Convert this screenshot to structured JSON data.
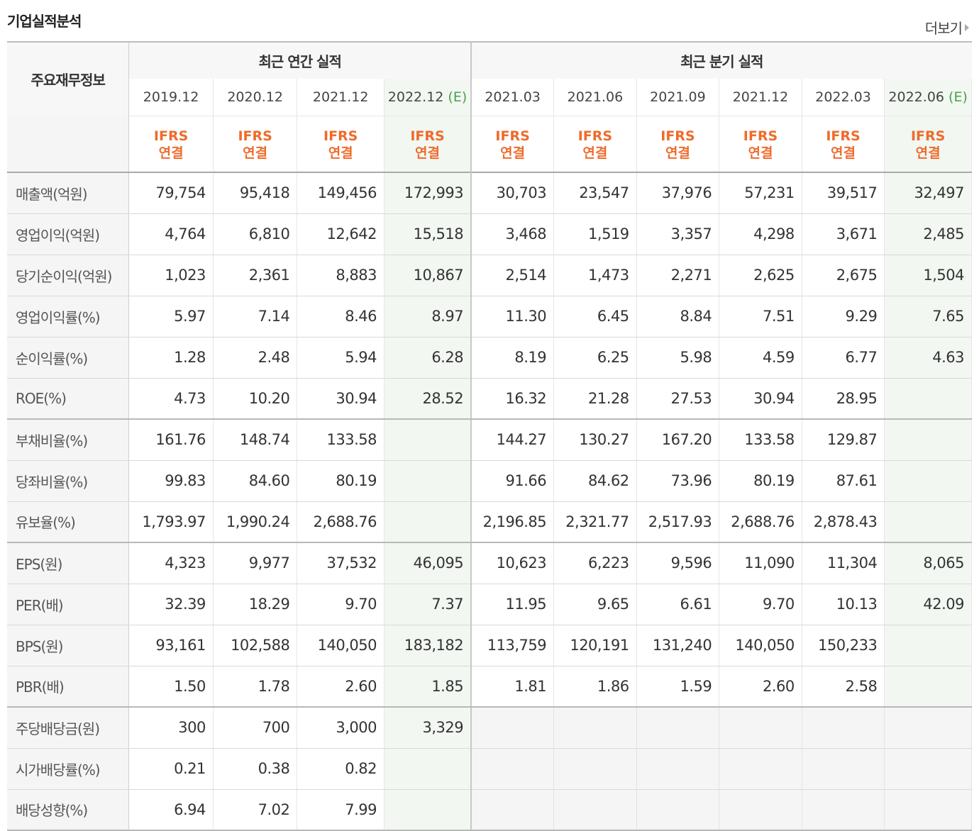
{
  "title": "기업실적분석",
  "more_label": "더보기",
  "header": {
    "corner": "주요재무정보",
    "annual_group": "최근 연간 실적",
    "quarter_group": "최근 분기 실적",
    "annual": [
      {
        "period": "2019.12",
        "estimate": "",
        "std": "IFRS",
        "type": "연결"
      },
      {
        "period": "2020.12",
        "estimate": "",
        "std": "IFRS",
        "type": "연결"
      },
      {
        "period": "2021.12",
        "estimate": "",
        "std": "IFRS",
        "type": "연결"
      },
      {
        "period": "2022.12",
        "estimate": "(E)",
        "std": "IFRS",
        "type": "연결"
      }
    ],
    "quarter": [
      {
        "period": "2021.03",
        "estimate": "",
        "std": "IFRS",
        "type": "연결"
      },
      {
        "period": "2021.06",
        "estimate": "",
        "std": "IFRS",
        "type": "연결"
      },
      {
        "period": "2021.09",
        "estimate": "",
        "std": "IFRS",
        "type": "연결"
      },
      {
        "period": "2021.12",
        "estimate": "",
        "std": "IFRS",
        "type": "연결"
      },
      {
        "period": "2022.03",
        "estimate": "",
        "std": "IFRS",
        "type": "연결"
      },
      {
        "period": "2022.06",
        "estimate": "(E)",
        "std": "IFRS",
        "type": "연결"
      }
    ]
  },
  "rows": [
    {
      "label": "매출액(억원)",
      "values": [
        "79,754",
        "95,418",
        "149,456",
        "172,993",
        "30,703",
        "23,547",
        "37,976",
        "57,231",
        "39,517",
        "32,497"
      ]
    },
    {
      "label": "영업이익(억원)",
      "values": [
        "4,764",
        "6,810",
        "12,642",
        "15,518",
        "3,468",
        "1,519",
        "3,357",
        "4,298",
        "3,671",
        "2,485"
      ]
    },
    {
      "label": "당기순이익(억원)",
      "values": [
        "1,023",
        "2,361",
        "8,883",
        "10,867",
        "2,514",
        "1,473",
        "2,271",
        "2,625",
        "2,675",
        "1,504"
      ]
    },
    {
      "label": "영업이익률(%)",
      "values": [
        "5.97",
        "7.14",
        "8.46",
        "8.97",
        "11.30",
        "6.45",
        "8.84",
        "7.51",
        "9.29",
        "7.65"
      ]
    },
    {
      "label": "순이익률(%)",
      "values": [
        "1.28",
        "2.48",
        "5.94",
        "6.28",
        "8.19",
        "6.25",
        "5.98",
        "4.59",
        "6.77",
        "4.63"
      ]
    },
    {
      "label": "ROE(%)",
      "values": [
        "4.73",
        "10.20",
        "30.94",
        "28.52",
        "16.32",
        "21.28",
        "27.53",
        "30.94",
        "28.95",
        ""
      ]
    },
    {
      "label": "부채비율(%)",
      "values": [
        "161.76",
        "148.74",
        "133.58",
        "",
        "144.27",
        "130.27",
        "167.20",
        "133.58",
        "129.87",
        ""
      ]
    },
    {
      "label": "당좌비율(%)",
      "values": [
        "99.83",
        "84.60",
        "80.19",
        "",
        "91.66",
        "84.62",
        "73.96",
        "80.19",
        "87.61",
        ""
      ]
    },
    {
      "label": "유보율(%)",
      "values": [
        "1,793.97",
        "1,990.24",
        "2,688.76",
        "",
        "2,196.85",
        "2,321.77",
        "2,517.93",
        "2,688.76",
        "2,878.43",
        ""
      ]
    },
    {
      "label": "EPS(원)",
      "values": [
        "4,323",
        "9,977",
        "37,532",
        "46,095",
        "10,623",
        "6,223",
        "9,596",
        "11,090",
        "11,304",
        "8,065"
      ]
    },
    {
      "label": "PER(배)",
      "values": [
        "32.39",
        "18.29",
        "9.70",
        "7.37",
        "11.95",
        "9.65",
        "6.61",
        "9.70",
        "10.13",
        "42.09"
      ]
    },
    {
      "label": "BPS(원)",
      "values": [
        "93,161",
        "102,588",
        "140,050",
        "183,182",
        "113,759",
        "120,191",
        "131,240",
        "140,050",
        "150,233",
        ""
      ]
    },
    {
      "label": "PBR(배)",
      "values": [
        "1.50",
        "1.78",
        "2.60",
        "1.85",
        "1.81",
        "1.86",
        "1.59",
        "2.60",
        "2.58",
        ""
      ]
    },
    {
      "label": "주당배당금(원)",
      "values": [
        "300",
        "700",
        "3,000",
        "3,329",
        "",
        "",
        "",
        "",
        "",
        ""
      ]
    },
    {
      "label": "시가배당률(%)",
      "values": [
        "0.21",
        "0.38",
        "0.82",
        "",
        "",
        "",
        "",
        "",
        "",
        ""
      ]
    },
    {
      "label": "배당성향(%)",
      "values": [
        "6.94",
        "7.02",
        "7.99",
        "",
        "",
        "",
        "",
        "",
        "",
        ""
      ]
    }
  ],
  "colors": {
    "ifrs": "#ee6b2b",
    "estimate_tag": "#4ba04b",
    "estimate_col_bg": "#f2f7f2",
    "label_bg": "#f5f5f5"
  }
}
